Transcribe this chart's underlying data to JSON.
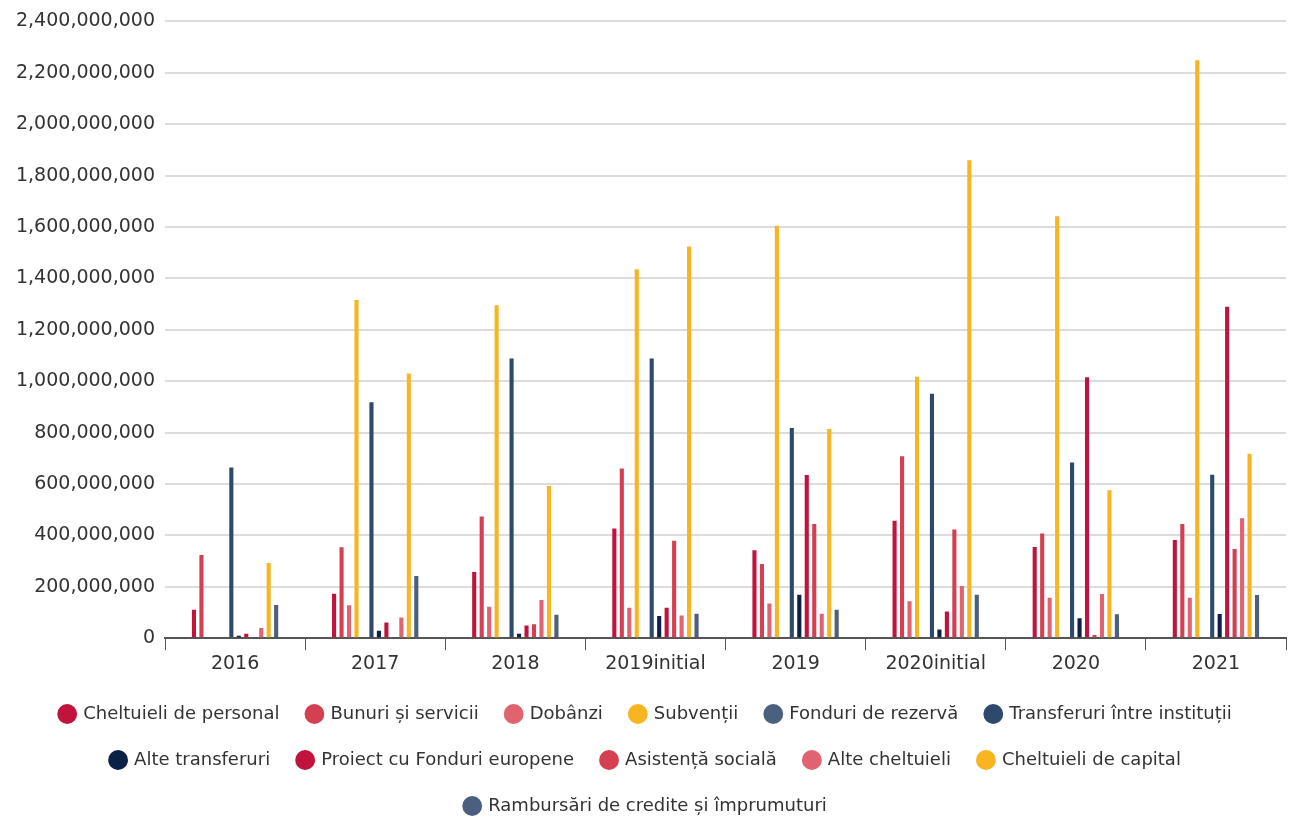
{
  "chart_data": {
    "type": "bar",
    "categories": [
      "2016",
      "2017",
      "2018",
      "2019initial",
      "2019",
      "2020initial",
      "2020",
      "2021"
    ],
    "series": [
      {
        "name": "Cheltuieli de personal",
        "color": "#c0143c",
        "values": [
          111000000,
          173000000,
          258000000,
          427000000,
          342000000,
          457000000,
          355000000,
          382000000
        ]
      },
      {
        "name": "Bunuri și servicii",
        "color": "#d43f52",
        "values": [
          324000000,
          354000000,
          474000000,
          660000000,
          289000000,
          708000000,
          407000000,
          444000000
        ]
      },
      {
        "name": "Dobânzi",
        "color": "#e0636f",
        "values": [
          0,
          128000000,
          122000000,
          118000000,
          135000000,
          144000000,
          157000000,
          157000000
        ]
      },
      {
        "name": "Subvenții",
        "color": "#f7b522",
        "values": [
          0,
          1316000000,
          1296000000,
          1436000000,
          1605000000,
          1017000000,
          1642000000,
          2249000000
        ]
      },
      {
        "name": "Fonduri de rezervă",
        "color": "#4b5f7e",
        "values": [
          0,
          0,
          0,
          0,
          0,
          0,
          0,
          0
        ]
      },
      {
        "name": "Transferuri între instituții",
        "color": "#2d4a6c",
        "values": [
          664000000,
          918000000,
          1088000000,
          1088000000,
          818000000,
          951000000,
          684000000,
          636000000
        ]
      },
      {
        "name": "Alte transferuri",
        "color": "#0c2146",
        "values": [
          10000000,
          29000000,
          17000000,
          86000000,
          169000000,
          34000000,
          78000000,
          94000000
        ]
      },
      {
        "name": "Proiect cu Fonduri europene",
        "color": "#c0143c",
        "values": [
          17000000,
          61000000,
          49000000,
          118000000,
          635000000,
          104000000,
          1015000000,
          1290000000
        ]
      },
      {
        "name": "Asistență socială",
        "color": "#d43f52",
        "values": [
          null,
          null,
          54000000,
          379000000,
          444000000,
          423000000,
          12000000,
          347000000
        ]
      },
      {
        "name": "Alte cheltuieli",
        "color": "#e0636f",
        "values": [
          40000000,
          81000000,
          149000000,
          88000000,
          95000000,
          203000000,
          172000000,
          467000000
        ]
      },
      {
        "name": "Cheltuieli de capital",
        "color": "#f7b522",
        "values": [
          293000000,
          1030000000,
          592000000,
          1524000000,
          814000000,
          1860000000,
          576000000,
          718000000
        ]
      },
      {
        "name": "Rambursări de credite și împrumuturi",
        "color": "#4b5f7e",
        "values": [
          129000000,
          242000000,
          91000000,
          95000000,
          111000000,
          169000000,
          93000000,
          168000000
        ]
      }
    ],
    "ylim": [
      0,
      2400000000
    ],
    "yticks": [
      0,
      {
        "value": 200000000,
        "label": "200,000,000"
      },
      {
        "value": 400000000,
        "label": "400,000,000"
      },
      {
        "value": 600000000,
        "label": "600,000,000"
      },
      {
        "value": 800000000,
        "label": "800,000,000"
      },
      {
        "value": 1000000000,
        "label": "1,000,000,000"
      },
      {
        "value": 1200000000,
        "label": "1,200,000,000"
      },
      {
        "value": 1400000000,
        "label": "1,400,000,000"
      },
      {
        "value": 1600000000,
        "label": "1,600,000,000"
      },
      {
        "value": 1800000000,
        "label": "1,800,000,000"
      },
      {
        "value": 2000000000,
        "label": "2,000,000,000"
      },
      {
        "value": 2200000000,
        "label": "2,200,000,000"
      },
      {
        "value": 2400000000,
        "label": "2,400,000,000"
      }
    ],
    "grid": "y",
    "legend": "bottom"
  }
}
